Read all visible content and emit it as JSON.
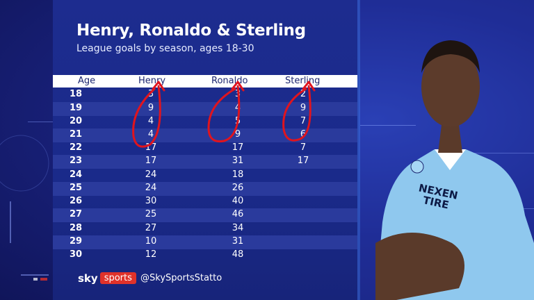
{
  "title": "Henry, Ronaldo & Sterling",
  "subtitle": "League goals by season, ages 18-30",
  "table": {
    "headers": [
      "Age",
      "Henry",
      "Ronaldo",
      "Sterling"
    ],
    "rows": [
      {
        "age": "18",
        "henry": "3",
        "ronaldo": "3",
        "sterling": "2"
      },
      {
        "age": "19",
        "henry": "9",
        "ronaldo": "4",
        "sterling": "9"
      },
      {
        "age": "20",
        "henry": "4",
        "ronaldo": "5",
        "sterling": "7"
      },
      {
        "age": "21",
        "henry": "4",
        "ronaldo": "9",
        "sterling": "6"
      },
      {
        "age": "22",
        "henry": "17",
        "ronaldo": "17",
        "sterling": "7"
      },
      {
        "age": "23",
        "henry": "17",
        "ronaldo": "31",
        "sterling": "17"
      },
      {
        "age": "24",
        "henry": "24",
        "ronaldo": "18",
        "sterling": ""
      },
      {
        "age": "25",
        "henry": "24",
        "ronaldo": "26",
        "sterling": ""
      },
      {
        "age": "26",
        "henry": "30",
        "ronaldo": "40",
        "sterling": ""
      },
      {
        "age": "27",
        "henry": "25",
        "ronaldo": "46",
        "sterling": ""
      },
      {
        "age": "28",
        "henry": "27",
        "ronaldo": "34",
        "sterling": ""
      },
      {
        "age": "29",
        "henry": "10",
        "ronaldo": "31",
        "sterling": ""
      },
      {
        "age": "30",
        "henry": "12",
        "ronaldo": "48",
        "sterling": ""
      }
    ]
  },
  "branding": {
    "sky": "sky",
    "sports": "sports",
    "handle": "@SkySportsStatto"
  },
  "shirt_text": {
    "sponsor_line1": "NEXEN",
    "sponsor_line2": "TIRE"
  },
  "colors": {
    "background": "#1a2380",
    "header_row": "#ffffff",
    "arrow": "#e0141e",
    "sky_sports_red": "#e0322a",
    "shirt": "#8fc8ee"
  }
}
